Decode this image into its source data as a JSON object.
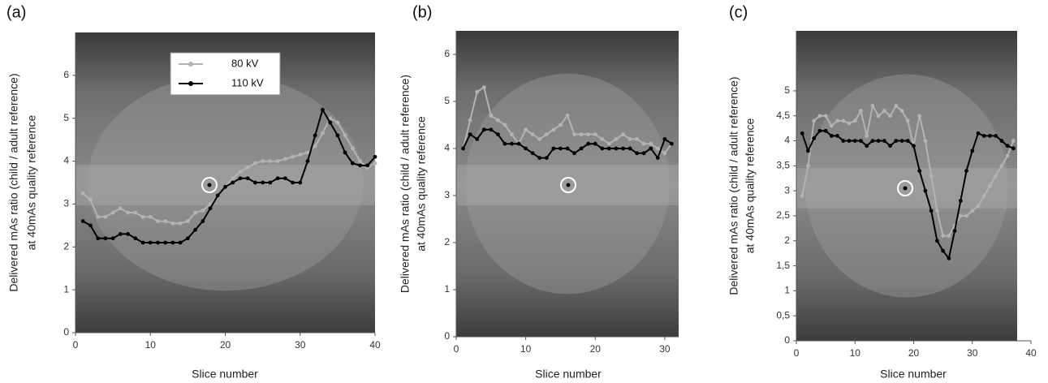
{
  "chart_data": [
    {
      "type": "line",
      "panel_label": "(a)",
      "ylabel": [
        "Delivered mAs ratio (child / adult reference)",
        "at 40mAs quality reference"
      ],
      "xlabel": "Slice number",
      "xlim": [
        0,
        40
      ],
      "xticks": [
        0,
        10,
        20,
        30,
        40
      ],
      "ylim": [
        0,
        7
      ],
      "yticks": [
        0,
        1,
        2,
        3,
        4,
        5,
        6
      ],
      "legend": "upper left",
      "x": [
        1,
        2,
        3,
        4,
        5,
        6,
        7,
        8,
        9,
        10,
        11,
        12,
        13,
        14,
        15,
        16,
        17,
        18,
        19,
        20,
        21,
        22,
        23,
        24,
        25,
        26,
        27,
        28,
        29,
        30,
        31,
        32,
        33,
        34,
        35,
        36,
        37,
        38,
        39,
        40
      ],
      "series": [
        {
          "name": "80 kV",
          "color": "#b3b3b3",
          "values": [
            3.25,
            3.1,
            2.7,
            2.7,
            2.8,
            2.9,
            2.8,
            2.8,
            2.7,
            2.7,
            2.6,
            2.6,
            2.55,
            2.55,
            2.6,
            2.8,
            2.85,
            3.0,
            3.2,
            3.4,
            3.6,
            3.75,
            3.85,
            3.95,
            4.0,
            4.0,
            4.0,
            4.05,
            4.1,
            4.15,
            4.2,
            4.35,
            4.65,
            5.0,
            4.9,
            4.6,
            4.3,
            4.0,
            3.85,
            3.95
          ]
        },
        {
          "name": "110 kV",
          "color": "#000000",
          "values": [
            2.6,
            2.5,
            2.2,
            2.2,
            2.2,
            2.3,
            2.3,
            2.2,
            2.1,
            2.1,
            2.1,
            2.1,
            2.1,
            2.1,
            2.2,
            2.4,
            2.6,
            2.9,
            3.2,
            3.4,
            3.5,
            3.6,
            3.6,
            3.5,
            3.5,
            3.5,
            3.6,
            3.6,
            3.5,
            3.5,
            4.0,
            4.6,
            5.2,
            4.9,
            4.6,
            4.2,
            3.95,
            3.9,
            3.9,
            4.1
          ]
        }
      ]
    },
    {
      "type": "line",
      "panel_label": "(b)",
      "ylabel": [
        "Delivered mAs ratio (child / adult reference)",
        "at 40mAs quality reference"
      ],
      "xlabel": "Slice number",
      "xlim": [
        0,
        32
      ],
      "xticks": [
        0,
        10,
        20,
        30
      ],
      "ylim": [
        0,
        6.5
      ],
      "yticks": [
        0,
        1,
        2,
        3,
        4,
        5,
        6
      ],
      "x": [
        1,
        2,
        3,
        4,
        5,
        6,
        7,
        8,
        9,
        10,
        11,
        12,
        13,
        14,
        15,
        16,
        17,
        18,
        19,
        20,
        21,
        22,
        23,
        24,
        25,
        26,
        27,
        28,
        29,
        30,
        31
      ],
      "series": [
        {
          "color": "#b3b3b3",
          "values": [
            4.0,
            4.6,
            5.2,
            5.3,
            4.7,
            4.6,
            4.5,
            4.3,
            4.1,
            4.4,
            4.3,
            4.2,
            4.3,
            4.4,
            4.5,
            4.7,
            4.3,
            4.3,
            4.3,
            4.3,
            4.2,
            4.1,
            4.2,
            4.3,
            4.2,
            4.2,
            4.1,
            4.1,
            4.0,
            3.9,
            4.1
          ]
        },
        {
          "color": "#000000",
          "values": [
            4.0,
            4.3,
            4.2,
            4.4,
            4.4,
            4.3,
            4.1,
            4.1,
            4.1,
            4.0,
            3.9,
            3.8,
            3.8,
            4.0,
            4.0,
            4.0,
            3.9,
            4.0,
            4.1,
            4.1,
            4.0,
            4.0,
            4.0,
            4.0,
            4.0,
            3.9,
            3.9,
            4.0,
            3.8,
            4.2,
            4.1
          ]
        }
      ]
    },
    {
      "type": "line",
      "panel_label": "(c)",
      "ylabel": [
        "Delivered mAs ratio (child / adult reference)",
        "at 40mAs quality reference"
      ],
      "xlabel": "Slice number",
      "xlim": [
        0,
        40
      ],
      "xticks": [
        0,
        10,
        20,
        30,
        40
      ],
      "ylim": [
        0,
        6.2
      ],
      "yticks": [
        0,
        {
          "value": 0.5,
          "label": "0,5"
        },
        1,
        {
          "value": 1.5,
          "label": "1,5"
        },
        2,
        {
          "value": 2.5,
          "label": "2,5"
        },
        3,
        {
          "value": 3.5,
          "label": "3,5"
        },
        4,
        {
          "value": 4.5,
          "label": "4,5"
        },
        5
      ],
      "x": [
        1,
        2,
        3,
        4,
        5,
        6,
        7,
        8,
        9,
        10,
        11,
        12,
        13,
        14,
        15,
        16,
        17,
        18,
        19,
        20,
        21,
        22,
        23,
        24,
        25,
        26,
        27,
        28,
        29,
        30,
        31,
        32,
        33,
        34,
        35,
        36,
        37
      ],
      "series": [
        {
          "color": "#b3b3b3",
          "values": [
            2.9,
            3.5,
            4.4,
            4.5,
            4.5,
            4.3,
            4.4,
            4.4,
            4.35,
            4.4,
            4.6,
            4.1,
            4.7,
            4.5,
            4.6,
            4.5,
            4.7,
            4.6,
            4.4,
            3.9,
            4.5,
            4.0,
            3.3,
            2.6,
            2.1,
            2.1,
            2.3,
            2.5,
            2.5,
            2.6,
            2.7,
            2.9,
            3.1,
            3.3,
            3.5,
            3.7,
            4.0
          ]
        },
        {
          "color": "#000000",
          "values": [
            4.15,
            3.8,
            4.05,
            4.2,
            4.2,
            4.1,
            4.1,
            4.0,
            4.0,
            4.0,
            4.0,
            3.9,
            4.0,
            4.0,
            4.0,
            3.9,
            4.0,
            4.0,
            4.0,
            3.9,
            3.4,
            3.0,
            2.6,
            2.0,
            1.8,
            1.65,
            2.2,
            2.8,
            3.4,
            3.8,
            4.15,
            4.1,
            4.1,
            4.1,
            4.0,
            3.9,
            3.85
          ]
        }
      ]
    }
  ]
}
